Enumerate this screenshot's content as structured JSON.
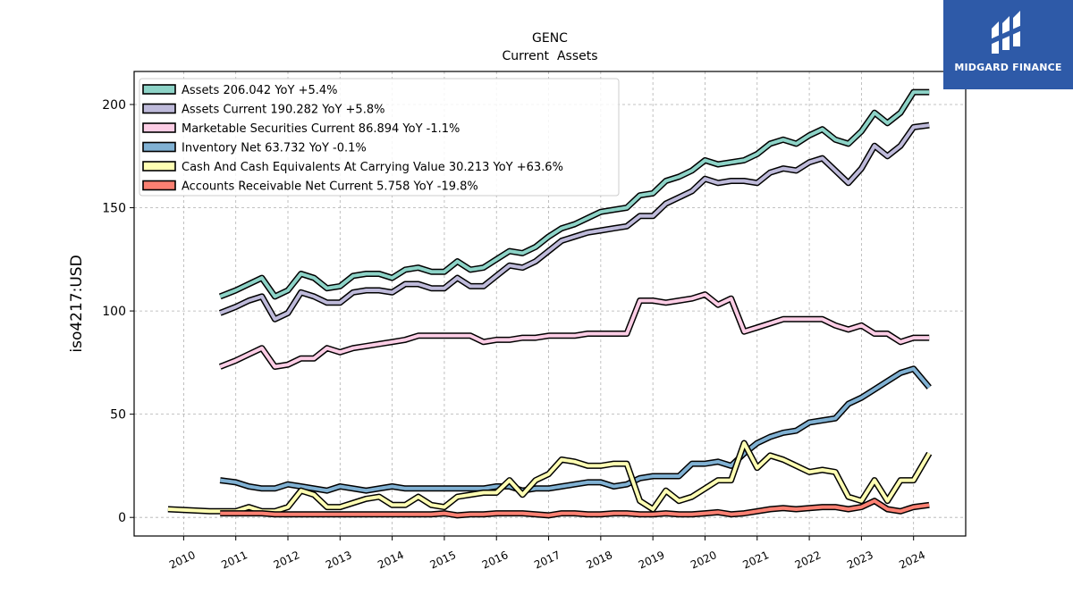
{
  "chart_data": {
    "type": "line",
    "title": "GENC",
    "subtitle": "Current  Assets",
    "ylabel": "iso4217:USD",
    "xlabel": "",
    "ylim": [
      -9,
      216
    ],
    "xlim": [
      2009.05,
      2025.0
    ],
    "yticks": [
      0,
      50,
      100,
      150,
      200
    ],
    "xticks": [
      "2010",
      "2011",
      "2012",
      "2013",
      "2014",
      "2015",
      "2016",
      "2017",
      "2018",
      "2019",
      "2020",
      "2021",
      "2022",
      "2023",
      "2024"
    ],
    "grid": true,
    "legend_position": "top-left",
    "series": [
      {
        "name": "Assets  206.042 YoY +5.4%",
        "color": "#8dd3c7",
        "x": [
          2010.7,
          2011.0,
          2011.25,
          2011.5,
          2011.75,
          2012.0,
          2012.25,
          2012.5,
          2012.75,
          2013.0,
          2013.25,
          2013.5,
          2013.75,
          2014.0,
          2014.25,
          2014.5,
          2014.75,
          2015.0,
          2015.25,
          2015.5,
          2015.75,
          2016.0,
          2016.25,
          2016.5,
          2016.75,
          2017.0,
          2017.25,
          2017.5,
          2017.75,
          2018.0,
          2018.25,
          2018.5,
          2018.75,
          2019.0,
          2019.25,
          2019.5,
          2019.75,
          2020.0,
          2020.25,
          2020.5,
          2020.75,
          2021.0,
          2021.25,
          2021.5,
          2021.75,
          2022.0,
          2022.25,
          2022.5,
          2022.75,
          2023.0,
          2023.25,
          2023.5,
          2023.75,
          2024.0,
          2024.3
        ],
        "y": [
          107,
          110,
          113,
          116,
          107,
          110,
          118,
          116,
          111,
          112,
          117,
          118,
          118,
          116,
          120,
          121,
          119,
          119,
          124,
          120,
          121,
          125,
          129,
          128,
          131,
          136,
          140,
          142,
          145,
          148,
          149,
          150,
          156,
          157,
          163,
          165,
          168,
          173,
          171,
          172,
          173,
          176,
          181,
          183,
          181,
          185,
          188,
          183,
          181,
          187,
          196,
          191,
          196,
          206,
          206
        ]
      },
      {
        "name": "Assets Current  190.282 YoY +5.8%",
        "color": "#bebada",
        "x": [
          2010.7,
          2011.0,
          2011.25,
          2011.5,
          2011.75,
          2012.0,
          2012.25,
          2012.5,
          2012.75,
          2013.0,
          2013.25,
          2013.5,
          2013.75,
          2014.0,
          2014.25,
          2014.5,
          2014.75,
          2015.0,
          2015.25,
          2015.5,
          2015.75,
          2016.0,
          2016.25,
          2016.5,
          2016.75,
          2017.0,
          2017.25,
          2017.5,
          2017.75,
          2018.0,
          2018.25,
          2018.5,
          2018.75,
          2019.0,
          2019.25,
          2019.5,
          2019.75,
          2020.0,
          2020.25,
          2020.5,
          2020.75,
          2021.0,
          2021.25,
          2021.5,
          2021.75,
          2022.0,
          2022.25,
          2022.5,
          2022.75,
          2023.0,
          2023.25,
          2023.5,
          2023.75,
          2024.0,
          2024.3
        ],
        "y": [
          99,
          102,
          105,
          107,
          96,
          99,
          109,
          107,
          104,
          104,
          109,
          110,
          110,
          109,
          113,
          113,
          111,
          111,
          116,
          112,
          112,
          117,
          122,
          121,
          124,
          129,
          134,
          136,
          138,
          139,
          140,
          141,
          146,
          146,
          152,
          155,
          158,
          164,
          162,
          163,
          163,
          162,
          167,
          169,
          168,
          172,
          174,
          168,
          162,
          169,
          180,
          175,
          180,
          189,
          190
        ]
      },
      {
        "name": "Marketable Securities Current  86.894 YoY -1.1%",
        "color": "#fccde5",
        "x": [
          2010.7,
          2011.0,
          2011.25,
          2011.5,
          2011.75,
          2012.0,
          2012.25,
          2012.5,
          2012.75,
          2013.0,
          2013.25,
          2013.5,
          2013.75,
          2014.0,
          2014.25,
          2014.5,
          2014.75,
          2015.0,
          2015.25,
          2015.5,
          2015.75,
          2016.0,
          2016.25,
          2016.5,
          2016.75,
          2017.0,
          2017.25,
          2017.5,
          2017.75,
          2018.0,
          2018.25,
          2018.5,
          2018.75,
          2019.0,
          2019.25,
          2019.5,
          2019.75,
          2020.0,
          2020.25,
          2020.5,
          2020.75,
          2021.0,
          2021.25,
          2021.5,
          2021.75,
          2022.0,
          2022.25,
          2022.5,
          2022.75,
          2023.0,
          2023.25,
          2023.5,
          2023.75,
          2024.0,
          2024.3
        ],
        "y": [
          73,
          76,
          79,
          82,
          73,
          74,
          77,
          77,
          82,
          80,
          82,
          83,
          84,
          85,
          86,
          88,
          88,
          88,
          88,
          88,
          85,
          86,
          86,
          87,
          87,
          88,
          88,
          88,
          89,
          89,
          89,
          89,
          105,
          105,
          104,
          105,
          106,
          108,
          103,
          106,
          90,
          92,
          94,
          96,
          96,
          96,
          96,
          93,
          91,
          93,
          89,
          89,
          85,
          87,
          87
        ]
      },
      {
        "name": "Inventory Net  63.732 YoY -0.1%",
        "color": "#80b1d3",
        "x": [
          2010.7,
          2011.0,
          2011.25,
          2011.5,
          2011.75,
          2012.0,
          2012.25,
          2012.5,
          2012.75,
          2013.0,
          2013.25,
          2013.5,
          2013.75,
          2014.0,
          2014.25,
          2014.5,
          2014.75,
          2015.0,
          2015.25,
          2015.5,
          2015.75,
          2016.0,
          2016.25,
          2016.5,
          2016.75,
          2017.0,
          2017.25,
          2017.5,
          2017.75,
          2018.0,
          2018.25,
          2018.5,
          2018.75,
          2019.0,
          2019.25,
          2019.5,
          2019.75,
          2020.0,
          2020.25,
          2020.5,
          2020.75,
          2021.0,
          2021.25,
          2021.5,
          2021.75,
          2022.0,
          2022.25,
          2022.5,
          2022.75,
          2023.0,
          2023.25,
          2023.5,
          2023.75,
          2024.0,
          2024.3
        ],
        "y": [
          18,
          17,
          15,
          14,
          14,
          16,
          15,
          14,
          13,
          15,
          14,
          13,
          14,
          15,
          14,
          14,
          14,
          14,
          14,
          14,
          14,
          15,
          15,
          13,
          14,
          14,
          15,
          16,
          17,
          17,
          15,
          16,
          19,
          20,
          20,
          20,
          26,
          26,
          27,
          25,
          31,
          36,
          39,
          41,
          42,
          46,
          47,
          48,
          55,
          58,
          62,
          66,
          70,
          72,
          63
        ]
      },
      {
        "name": "Cash And Cash Equivalents At Carrying Value  30.213 YoY +63.6%",
        "color": "#ffffb3",
        "x": [
          2009.7,
          2010.5,
          2010.75,
          2011.0,
          2011.25,
          2011.5,
          2011.75,
          2012.0,
          2012.25,
          2012.5,
          2012.75,
          2013.0,
          2013.25,
          2013.5,
          2013.75,
          2014.0,
          2014.25,
          2014.5,
          2014.75,
          2015.0,
          2015.25,
          2015.5,
          2015.75,
          2016.0,
          2016.25,
          2016.5,
          2016.75,
          2017.0,
          2017.25,
          2017.5,
          2017.75,
          2018.0,
          2018.25,
          2018.5,
          2018.75,
          2019.0,
          2019.25,
          2019.5,
          2019.75,
          2020.0,
          2020.25,
          2020.5,
          2020.75,
          2021.0,
          2021.25,
          2021.5,
          2021.75,
          2022.0,
          2022.25,
          2022.5,
          2022.75,
          2023.0,
          2023.25,
          2023.5,
          2023.75,
          2024.0,
          2024.3
        ],
        "y": [
          4,
          3,
          3,
          3,
          5,
          3,
          3,
          5,
          13,
          11,
          5,
          5,
          7,
          9,
          10,
          6,
          6,
          10,
          6,
          5,
          10,
          11,
          12,
          12,
          18,
          11,
          18,
          21,
          28,
          27,
          25,
          25,
          26,
          26,
          8,
          4,
          13,
          8,
          10,
          14,
          18,
          18,
          36,
          24,
          30,
          28,
          25,
          22,
          23,
          22,
          10,
          8,
          18,
          8,
          18,
          18,
          31
        ]
      },
      {
        "name": "Accounts Receivable Net Current  5.758 YoY -19.8%",
        "color": "#fb8072",
        "x": [
          2010.7,
          2011.0,
          2011.25,
          2011.5,
          2011.75,
          2012.0,
          2012.25,
          2012.5,
          2012.75,
          2013.0,
          2013.25,
          2013.5,
          2013.75,
          2014.0,
          2014.25,
          2014.5,
          2014.75,
          2015.0,
          2015.25,
          2015.5,
          2015.75,
          2016.0,
          2016.25,
          2016.5,
          2016.75,
          2017.0,
          2017.25,
          2017.5,
          2017.75,
          2018.0,
          2018.25,
          2018.5,
          2018.75,
          2019.0,
          2019.25,
          2019.5,
          2019.75,
          2020.0,
          2020.25,
          2020.5,
          2020.75,
          2021.0,
          2021.25,
          2021.5,
          2021.75,
          2022.0,
          2022.25,
          2022.5,
          2022.75,
          2023.0,
          2023.25,
          2023.5,
          2023.75,
          2024.0,
          2024.3
        ],
        "y": [
          2,
          2,
          2,
          2,
          1.5,
          1.5,
          1.5,
          1.5,
          1.5,
          1.5,
          1.5,
          1.5,
          1.5,
          1.5,
          1.5,
          1.5,
          1.5,
          2,
          1,
          1.5,
          1.5,
          2,
          2,
          2,
          1.5,
          1,
          2,
          2,
          1.5,
          1.5,
          2,
          2,
          1.5,
          1.5,
          2,
          1.5,
          1.5,
          2,
          2.5,
          1.5,
          2,
          3,
          4,
          4.5,
          4,
          4.5,
          5,
          5,
          4,
          5,
          8,
          4,
          3,
          5,
          6
        ]
      }
    ]
  },
  "logo": {
    "text": "MIDGARD FINANCE",
    "background": "#2e5aa8"
  }
}
